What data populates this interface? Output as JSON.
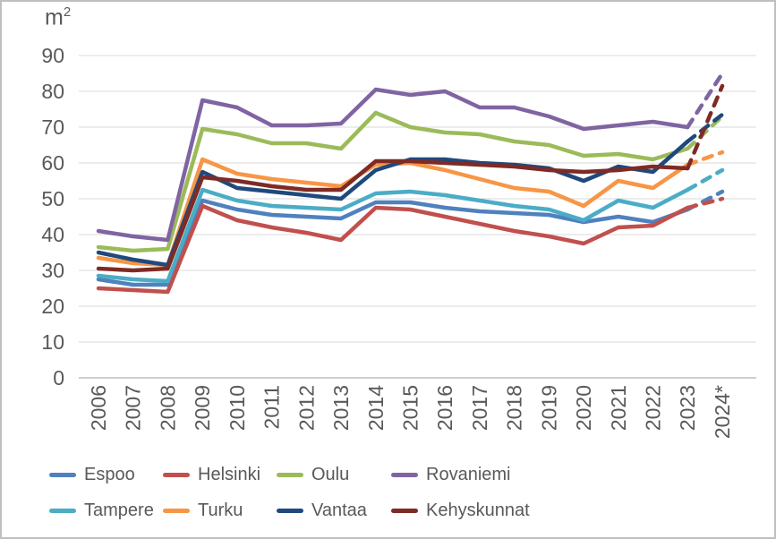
{
  "chart_data": {
    "type": "line",
    "unit_base": "m",
    "unit_exponent": "2",
    "x_categories": [
      "2006",
      "2007",
      "2008",
      "2009",
      "2010",
      "2011",
      "2012",
      "2013",
      "2014",
      "2015",
      "2016",
      "2017",
      "2018",
      "2019",
      "2020",
      "2021",
      "2022",
      "2023",
      "2024*"
    ],
    "ylim": [
      0,
      90
    ],
    "ytick_step": 10,
    "grid": true,
    "legend_position": "bottom",
    "dashed_from_index": 17,
    "text_color": "#595959",
    "grid_color": "#d9d9d9",
    "axis_color": "#bfbfbf",
    "series": [
      {
        "name": "Espoo",
        "color": "#4F81BD",
        "values": [
          27.5,
          26,
          26,
          49.5,
          47,
          45.5,
          45,
          44.5,
          49,
          49,
          47.5,
          46.5,
          46,
          45.5,
          43.5,
          45,
          43.5,
          47,
          52
        ]
      },
      {
        "name": "Helsinki",
        "color": "#C0504D",
        "values": [
          25,
          24.5,
          24,
          48,
          44,
          42,
          40.5,
          38.5,
          47.5,
          47,
          45,
          43,
          41,
          39.5,
          37.5,
          42,
          42.5,
          47.5,
          50
        ]
      },
      {
        "name": "Oulu",
        "color": "#9BBB59",
        "values": [
          36.5,
          35.5,
          36,
          69.5,
          68,
          65.5,
          65.5,
          64,
          74,
          70,
          68.5,
          68,
          66,
          65,
          62,
          62.5,
          61,
          64,
          73
        ]
      },
      {
        "name": "Rovaniemi",
        "color": "#8064A2",
        "values": [
          41,
          39.5,
          38.5,
          77.5,
          75.5,
          70.5,
          70.5,
          71,
          80.5,
          79,
          80,
          75.5,
          75.5,
          73,
          69.5,
          70.5,
          71.5,
          70,
          85
        ]
      },
      {
        "name": "Tampere",
        "color": "#4BACC6",
        "values": [
          28.5,
          27.5,
          27,
          52.5,
          49.5,
          48,
          47.5,
          47,
          51.5,
          52,
          51,
          49.5,
          48,
          47,
          44,
          49.5,
          47.5,
          52.5,
          58
        ]
      },
      {
        "name": "Turku",
        "color": "#F79646",
        "values": [
          33.5,
          32,
          31.5,
          61,
          57,
          55.5,
          54.5,
          53.5,
          59.5,
          60,
          58,
          55.5,
          53,
          52,
          48,
          55,
          53,
          59.5,
          63
        ]
      },
      {
        "name": "Vantaa",
        "color": "#1F497D",
        "values": [
          35,
          33,
          31.5,
          57.5,
          53,
          52,
          51,
          50,
          58,
          61,
          61,
          60,
          59.5,
          58.5,
          55,
          59,
          57.5,
          66,
          73.5
        ]
      },
      {
        "name": "Kehyskunnat",
        "color": "#7E2B25",
        "values": [
          30.5,
          30,
          30.5,
          56,
          55,
          53.5,
          52.5,
          52.5,
          60.5,
          60.5,
          60,
          59.5,
          59,
          58,
          57.5,
          58,
          59,
          58.5,
          81.5
        ]
      }
    ]
  }
}
